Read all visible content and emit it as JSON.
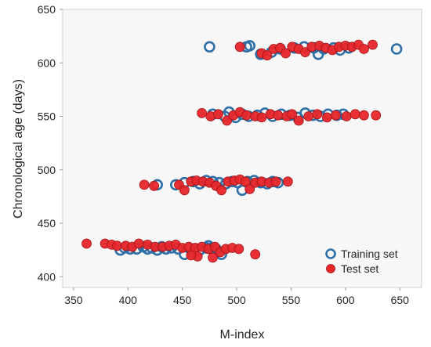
{
  "chart_data": {
    "type": "scatter",
    "title": "",
    "xlabel": "M-index",
    "ylabel": "Chronological age (days)",
    "xlim": [
      340,
      670
    ],
    "ylim": [
      390,
      650
    ],
    "xticks": [
      350,
      400,
      450,
      500,
      550,
      600,
      650
    ],
    "yticks": [
      400,
      450,
      500,
      550,
      600,
      650
    ],
    "grid": false,
    "legend_position": "bottom-right",
    "series": [
      {
        "name": "Training set",
        "marker": "open-circle",
        "color": "#2e6fa8",
        "points": [
          [
            393,
            425
          ],
          [
            397,
            427
          ],
          [
            402,
            426
          ],
          [
            408,
            426
          ],
          [
            414,
            428
          ],
          [
            418,
            426
          ],
          [
            422,
            427
          ],
          [
            427,
            425
          ],
          [
            431,
            428
          ],
          [
            435,
            426
          ],
          [
            440,
            427
          ],
          [
            446,
            426
          ],
          [
            452,
            421
          ],
          [
            456,
            427
          ],
          [
            461,
            426
          ],
          [
            466,
            425
          ],
          [
            472,
            427
          ],
          [
            477,
            427
          ],
          [
            481,
            426
          ],
          [
            486,
            421
          ],
          [
            474,
            429
          ],
          [
            427,
            486
          ],
          [
            444,
            486
          ],
          [
            452,
            488
          ],
          [
            460,
            489
          ],
          [
            466,
            487
          ],
          [
            472,
            490
          ],
          [
            478,
            489
          ],
          [
            484,
            488
          ],
          [
            490,
            487
          ],
          [
            496,
            489
          ],
          [
            501,
            488
          ],
          [
            505,
            481
          ],
          [
            510,
            489
          ],
          [
            516,
            490
          ],
          [
            522,
            488
          ],
          [
            528,
            487
          ],
          [
            533,
            489
          ],
          [
            538,
            488
          ],
          [
            478,
            552
          ],
          [
            489,
            550
          ],
          [
            493,
            554
          ],
          [
            499,
            549
          ],
          [
            505,
            552
          ],
          [
            511,
            550
          ],
          [
            519,
            551
          ],
          [
            526,
            553
          ],
          [
            533,
            550
          ],
          [
            541,
            552
          ],
          [
            549,
            551
          ],
          [
            556,
            549
          ],
          [
            563,
            553
          ],
          [
            570,
            551
          ],
          [
            577,
            550
          ],
          [
            584,
            552
          ],
          [
            592,
            551
          ],
          [
            598,
            552
          ],
          [
            475,
            615
          ],
          [
            509,
            615
          ],
          [
            512,
            616
          ],
          [
            522,
            608
          ],
          [
            532,
            610
          ],
          [
            540,
            613
          ],
          [
            553,
            614
          ],
          [
            562,
            615
          ],
          [
            571,
            614
          ],
          [
            575,
            608
          ],
          [
            580,
            613
          ],
          [
            589,
            614
          ],
          [
            595,
            612
          ],
          [
            603,
            614
          ],
          [
            647,
            613
          ]
        ]
      },
      {
        "name": "Test set",
        "marker": "filled-circle",
        "color": "#e8262a",
        "points": [
          [
            362,
            431
          ],
          [
            379,
            431
          ],
          [
            385,
            430
          ],
          [
            390,
            429
          ],
          [
            398,
            429
          ],
          [
            404,
            428
          ],
          [
            410,
            431
          ],
          [
            418,
            430
          ],
          [
            425,
            428
          ],
          [
            432,
            428
          ],
          [
            438,
            429
          ],
          [
            444,
            430
          ],
          [
            450,
            427
          ],
          [
            456,
            428
          ],
          [
            462,
            427
          ],
          [
            468,
            428
          ],
          [
            474,
            426
          ],
          [
            480,
            428
          ],
          [
            485,
            423
          ],
          [
            490,
            426
          ],
          [
            496,
            427
          ],
          [
            502,
            426
          ],
          [
            517,
            421
          ],
          [
            464,
            419
          ],
          [
            478,
            418
          ],
          [
            458,
            420
          ],
          [
            415,
            486
          ],
          [
            424,
            485
          ],
          [
            447,
            486
          ],
          [
            452,
            481
          ],
          [
            458,
            489
          ],
          [
            463,
            490
          ],
          [
            469,
            489
          ],
          [
            475,
            488
          ],
          [
            481,
            485
          ],
          [
            486,
            481
          ],
          [
            492,
            489
          ],
          [
            498,
            490
          ],
          [
            503,
            491
          ],
          [
            508,
            489
          ],
          [
            512,
            482
          ],
          [
            517,
            488
          ],
          [
            523,
            489
          ],
          [
            530,
            488
          ],
          [
            536,
            489
          ],
          [
            547,
            489
          ],
          [
            468,
            553
          ],
          [
            476,
            550
          ],
          [
            483,
            552
          ],
          [
            491,
            546
          ],
          [
            497,
            551
          ],
          [
            503,
            554
          ],
          [
            509,
            551
          ],
          [
            517,
            550
          ],
          [
            523,
            549
          ],
          [
            531,
            552
          ],
          [
            538,
            551
          ],
          [
            546,
            550
          ],
          [
            551,
            552
          ],
          [
            557,
            546
          ],
          [
            566,
            550
          ],
          [
            574,
            552
          ],
          [
            583,
            549
          ],
          [
            591,
            551
          ],
          [
            601,
            550
          ],
          [
            609,
            552
          ],
          [
            617,
            551
          ],
          [
            628,
            551
          ],
          [
            503,
            615
          ],
          [
            523,
            609
          ],
          [
            528,
            607
          ],
          [
            534,
            613
          ],
          [
            540,
            614
          ],
          [
            545,
            609
          ],
          [
            551,
            615
          ],
          [
            557,
            613
          ],
          [
            563,
            610
          ],
          [
            569,
            615
          ],
          [
            576,
            616
          ],
          [
            582,
            614
          ],
          [
            588,
            612
          ],
          [
            594,
            615
          ],
          [
            600,
            616
          ],
          [
            606,
            615
          ],
          [
            612,
            617
          ],
          [
            617,
            613
          ],
          [
            625,
            617
          ]
        ]
      }
    ]
  }
}
